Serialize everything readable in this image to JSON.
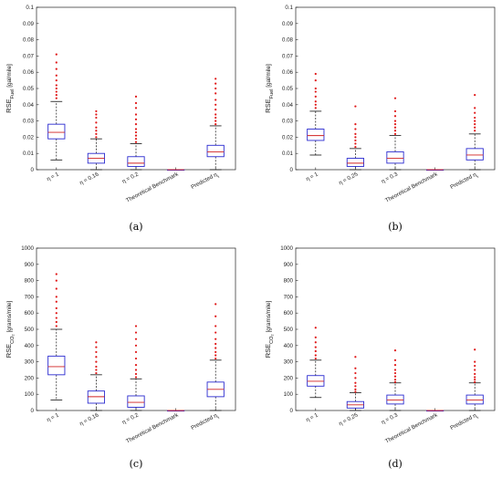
{
  "chart_data": [
    {
      "type": "boxplot",
      "caption": "(a)",
      "ylabel": "RSE_fuel [gal/mile]",
      "ylabel_main": "RSE",
      "ylabel_sub": "Fuel",
      "ylabel_unit": "[gal/mile]",
      "ylim": [
        0,
        0.1
      ],
      "yticks": [
        "0",
        "0.01",
        "0.02",
        "0.03",
        "0.04",
        "0.05",
        "0.06",
        "0.07",
        "0.08",
        "0.09",
        "0.1"
      ],
      "categories": [
        "η = 1",
        "η = 0.16",
        "η = 0.2",
        "Theoretical Benchmark",
        "Predicted η_i"
      ],
      "boxes": [
        {
          "whislo": 0.006,
          "q1": 0.019,
          "med": 0.023,
          "q3": 0.028,
          "whishi": 0.042,
          "outliers": [
            0.044,
            0.046,
            0.048,
            0.05,
            0.052,
            0.055,
            0.058,
            0.062,
            0.066,
            0.071
          ]
        },
        {
          "whislo": 0.0,
          "q1": 0.004,
          "med": 0.007,
          "q3": 0.01,
          "whishi": 0.019,
          "outliers": [
            0.02,
            0.022,
            0.024,
            0.026,
            0.029,
            0.032,
            0.034,
            0.036
          ]
        },
        {
          "whislo": 0.0,
          "q1": 0.002,
          "med": 0.004,
          "q3": 0.008,
          "whishi": 0.016,
          "outliers": [
            0.017,
            0.019,
            0.021,
            0.023,
            0.025,
            0.028,
            0.031,
            0.034,
            0.038,
            0.041,
            0.045
          ]
        },
        {
          "whislo": 0.0,
          "q1": 0.0,
          "med": 0.0,
          "q3": 0.0,
          "whishi": 0.0,
          "outliers": []
        },
        {
          "whislo": 0.0,
          "q1": 0.008,
          "med": 0.011,
          "q3": 0.015,
          "whishi": 0.027,
          "outliers": [
            0.028,
            0.03,
            0.032,
            0.034,
            0.037,
            0.04,
            0.043,
            0.047,
            0.05,
            0.053,
            0.056
          ]
        }
      ]
    },
    {
      "type": "boxplot",
      "caption": "(b)",
      "ylabel": "RSE_Fuel [gal/mile]",
      "ylabel_main": "RSE",
      "ylabel_sub": "Fuel",
      "ylabel_unit": "[gal/mile]",
      "ylim": [
        0,
        0.1
      ],
      "yticks": [
        "0",
        "0.01",
        "0.02",
        "0.03",
        "0.04",
        "0.05",
        "0.06",
        "0.07",
        "0.08",
        "0.09",
        "0.1"
      ],
      "categories": [
        "η = 1",
        "η = 0.25",
        "η = 0.3",
        "Theoretical Benchmark",
        "Predicted η_i"
      ],
      "boxes": [
        {
          "whislo": 0.009,
          "q1": 0.018,
          "med": 0.021,
          "q3": 0.025,
          "whishi": 0.036,
          "outliers": [
            0.038,
            0.04,
            0.042,
            0.045,
            0.048,
            0.05,
            0.055,
            0.059
          ]
        },
        {
          "whislo": 0.0,
          "q1": 0.002,
          "med": 0.004,
          "q3": 0.007,
          "whishi": 0.013,
          "outliers": [
            0.014,
            0.016,
            0.018,
            0.02,
            0.022,
            0.025,
            0.028,
            0.039
          ]
        },
        {
          "whislo": 0.0,
          "q1": 0.004,
          "med": 0.007,
          "q3": 0.011,
          "whishi": 0.021,
          "outliers": [
            0.022,
            0.024,
            0.026,
            0.028,
            0.03,
            0.033,
            0.036,
            0.044
          ]
        },
        {
          "whislo": 0.0,
          "q1": 0.0,
          "med": 0.0,
          "q3": 0.0,
          "whishi": 0.0,
          "outliers": []
        },
        {
          "whislo": 0.0,
          "q1": 0.006,
          "med": 0.009,
          "q3": 0.013,
          "whishi": 0.022,
          "outliers": [
            0.024,
            0.026,
            0.028,
            0.03,
            0.032,
            0.035,
            0.038,
            0.046
          ]
        }
      ]
    },
    {
      "type": "boxplot",
      "caption": "(c)",
      "ylabel": "RSE_CO2 [grams/mile]",
      "ylabel_main": "RSE",
      "ylabel_sub": "CO₂",
      "ylabel_unit": "[grams/mile]",
      "ylim": [
        0,
        1000
      ],
      "yticks": [
        "0",
        "100",
        "200",
        "300",
        "400",
        "500",
        "600",
        "700",
        "800",
        "900",
        "1000"
      ],
      "categories": [
        "η = 1",
        "η = 0.16",
        "η = 0.2",
        "Theoretical Benchmark",
        "Predicted η_i"
      ],
      "boxes": [
        {
          "whislo": 65,
          "q1": 220,
          "med": 270,
          "q3": 335,
          "whishi": 500,
          "outliers": [
            520,
            545,
            570,
            600,
            630,
            670,
            700,
            750,
            800,
            840
          ]
        },
        {
          "whislo": 0,
          "q1": 45,
          "med": 85,
          "q3": 120,
          "whishi": 220,
          "outliers": [
            230,
            250,
            270,
            300,
            330,
            360,
            390,
            420
          ]
        },
        {
          "whislo": 0,
          "q1": 20,
          "med": 50,
          "q3": 90,
          "whishi": 195,
          "outliers": [
            205,
            225,
            250,
            280,
            320,
            360,
            400,
            440,
            480,
            520
          ]
        },
        {
          "whislo": 0,
          "q1": 0,
          "med": 0,
          "q3": 0,
          "whishi": 0,
          "outliers": []
        },
        {
          "whislo": 0,
          "q1": 85,
          "med": 130,
          "q3": 175,
          "whishi": 310,
          "outliers": [
            320,
            340,
            360,
            385,
            410,
            440,
            480,
            520,
            580,
            655
          ]
        }
      ]
    },
    {
      "type": "boxplot",
      "caption": "(d)",
      "ylabel": "RSE_CO2 [grams/mile]",
      "ylabel_main": "RSE",
      "ylabel_sub": "CO₂",
      "ylabel_unit": "[grams/mile]",
      "ylim": [
        0,
        1000
      ],
      "yticks": [
        "0",
        "100",
        "200",
        "300",
        "400",
        "500",
        "600",
        "700",
        "800",
        "900",
        "1000"
      ],
      "categories": [
        "η = 1",
        "η = 0.25",
        "η = 0.3",
        "Theoretical Benchmark",
        "Predicted η_i"
      ],
      "boxes": [
        {
          "whislo": 80,
          "q1": 150,
          "med": 180,
          "q3": 215,
          "whishi": 310,
          "outliers": [
            320,
            340,
            365,
            390,
            420,
            450,
            510
          ]
        },
        {
          "whislo": 0,
          "q1": 15,
          "med": 35,
          "q3": 55,
          "whishi": 110,
          "outliers": [
            115,
            130,
            150,
            170,
            200,
            230,
            260,
            330
          ]
        },
        {
          "whislo": 0,
          "q1": 40,
          "med": 65,
          "q3": 95,
          "whishi": 170,
          "outliers": [
            175,
            190,
            210,
            230,
            250,
            280,
            310,
            370
          ]
        },
        {
          "whislo": 0,
          "q1": 0,
          "med": 0,
          "q3": 0,
          "whishi": 0,
          "outliers": []
        },
        {
          "whislo": 0,
          "q1": 40,
          "med": 65,
          "q3": 95,
          "whishi": 170,
          "outliers": [
            175,
            190,
            205,
            225,
            250,
            275,
            300,
            375
          ]
        }
      ]
    }
  ],
  "colors": {
    "box": "#2a2ad0",
    "median": "#d02020",
    "outlier": "#e01818",
    "whisker": "#111111",
    "axis": "#222222"
  }
}
